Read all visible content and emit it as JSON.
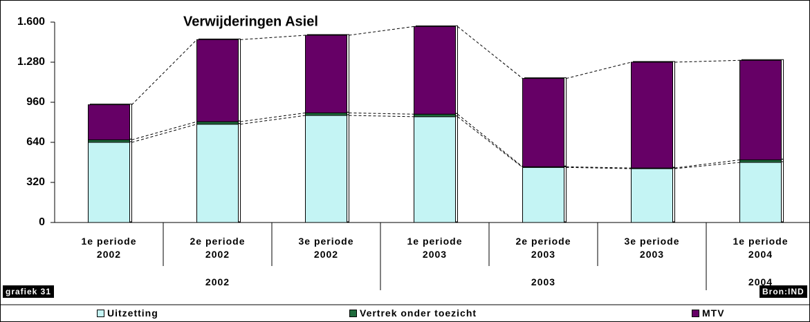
{
  "chart_data": {
    "type": "stacked_bar",
    "title": "Verwijderingen Asiel",
    "categories": [
      "1e periode 2002",
      "2e periode 2002",
      "3e periode 2002",
      "1e periode 2003",
      "2e periode 2003",
      "3e periode 2003",
      "1e periode 2004"
    ],
    "groups": [
      "2002",
      "2003",
      "2004"
    ],
    "series": [
      {
        "name": "Uitzetting",
        "color": "#c4f4f4",
        "values": [
          640,
          785,
          855,
          845,
          440,
          430,
          480
        ]
      },
      {
        "name": "Vertrek onder toezicht",
        "color": "#1f6b3c",
        "values": [
          20,
          20,
          20,
          20,
          5,
          5,
          20
        ]
      },
      {
        "name": "MTV",
        "color": "#660066",
        "values": [
          280,
          655,
          620,
          700,
          705,
          845,
          795
        ]
      }
    ],
    "ylim": [
      0,
      1600
    ],
    "yticks": [
      0,
      320,
      640,
      960,
      {
        "value": 1280,
        "label": "1.280"
      },
      {
        "value": 1600,
        "label": "1.600"
      }
    ],
    "chart_label": "grafiek 31",
    "source": "Bron:IND"
  }
}
